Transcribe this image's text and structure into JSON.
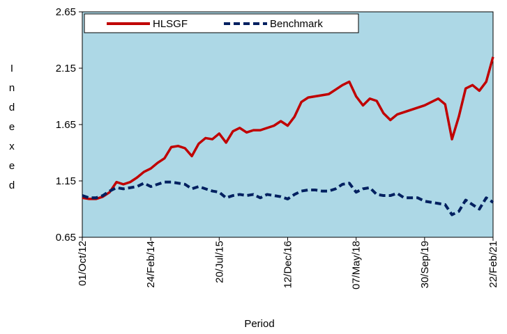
{
  "chart_data": {
    "type": "line",
    "y_label": "Indexed",
    "x_label": "Period",
    "categories": [
      "01/Oct/12",
      null,
      null,
      null,
      null,
      null,
      null,
      null,
      null,
      null,
      "24/Feb/14",
      null,
      null,
      null,
      null,
      null,
      null,
      null,
      null,
      null,
      "20/Jul/15",
      null,
      null,
      null,
      null,
      null,
      null,
      null,
      null,
      null,
      "12/Dec/16",
      null,
      null,
      null,
      null,
      null,
      null,
      null,
      null,
      null,
      "07/May/18",
      null,
      null,
      null,
      null,
      null,
      null,
      null,
      null,
      null,
      "30/Sep/19",
      null,
      null,
      null,
      null,
      null,
      null,
      null,
      null,
      null,
      "22/Feb/21"
    ],
    "series": [
      {
        "name": "HLSGF",
        "color": "#c00000",
        "dashed": false,
        "values": [
          1.0,
          0.99,
          0.99,
          1.01,
          1.05,
          1.14,
          1.12,
          1.14,
          1.18,
          1.23,
          1.26,
          1.31,
          1.35,
          1.45,
          1.46,
          1.44,
          1.37,
          1.48,
          1.53,
          1.52,
          1.57,
          1.49,
          1.59,
          1.62,
          1.58,
          1.6,
          1.6,
          1.62,
          1.64,
          1.68,
          1.64,
          1.72,
          1.85,
          1.89,
          1.9,
          1.91,
          1.92,
          1.96,
          2.0,
          2.03,
          1.9,
          1.82,
          1.88,
          1.86,
          1.75,
          1.69,
          1.74,
          1.76,
          1.78,
          1.8,
          1.82,
          1.85,
          1.88,
          1.83,
          1.52,
          1.72,
          1.97,
          2.0,
          1.95,
          2.03,
          2.25
        ]
      },
      {
        "name": "Benchmark",
        "color": "#002060",
        "dashed": true,
        "values": [
          1.02,
          1.0,
          1.0,
          1.02,
          1.06,
          1.09,
          1.08,
          1.09,
          1.1,
          1.13,
          1.1,
          1.12,
          1.14,
          1.14,
          1.13,
          1.12,
          1.08,
          1.1,
          1.08,
          1.06,
          1.05,
          1.0,
          1.02,
          1.03,
          1.02,
          1.03,
          1.0,
          1.03,
          1.02,
          1.01,
          0.99,
          1.03,
          1.06,
          1.07,
          1.07,
          1.06,
          1.06,
          1.08,
          1.12,
          1.13,
          1.05,
          1.08,
          1.09,
          1.03,
          1.02,
          1.02,
          1.04,
          1.0,
          1.0,
          1.0,
          0.97,
          0.96,
          0.95,
          0.94,
          0.85,
          0.88,
          0.98,
          0.94,
          0.9,
          1.0,
          0.96
        ]
      }
    ],
    "ylim": [
      0.65,
      2.65
    ],
    "yticks": [
      0.65,
      1.15,
      1.65,
      2.15,
      2.65
    ],
    "grid": false,
    "legend": "upper-left",
    "plot_background": "#add8e6"
  }
}
